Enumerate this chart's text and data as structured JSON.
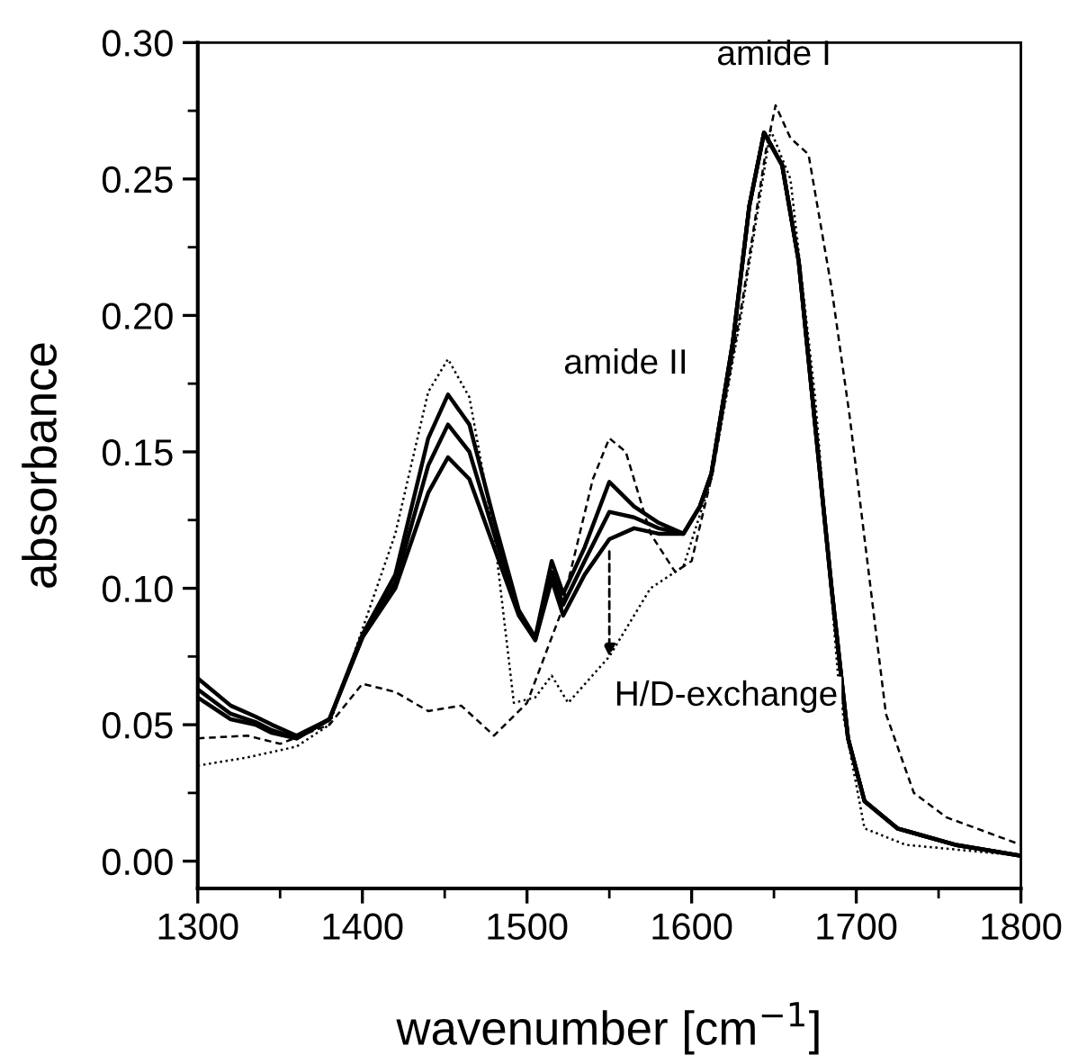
{
  "chart_data": {
    "type": "line",
    "xlabel": "wavenumber [cm$^{−1}$]",
    "ylabel": "absorbance",
    "xlim": [
      1300,
      1800
    ],
    "xticks": [
      1300,
      1400,
      1500,
      1600,
      1700,
      1800
    ],
    "ylim": [
      -0.01,
      0.3
    ],
    "yticks": [
      {
        "value": 0,
        "label": "0.00"
      },
      {
        "value": 0.05,
        "label": "0.05"
      },
      {
        "value": 0.1,
        "label": "0.10"
      },
      {
        "value": 0.15,
        "label": "0.15"
      },
      {
        "value": 0.2,
        "label": "0.20"
      },
      {
        "value": 0.25,
        "label": "0.25"
      },
      {
        "value": 0.3,
        "label": "0.30"
      }
    ],
    "grid": false,
    "legend": false,
    "marker": "none",
    "annotations": [
      "amide I",
      "amide II",
      {
        "text": "H/D-exchange",
        "x": 1550,
        "y": 0.075
      }
    ],
    "series": [
      {
        "color": "#000000",
        "line_style": "dotted",
        "x": [
          1300,
          1330,
          1360,
          1380,
          1400,
          1420,
          1440,
          1452,
          1465,
          1480,
          1492,
          1505,
          1515,
          1525,
          1550,
          1575,
          1595,
          1612,
          1630,
          1648,
          1660,
          1675,
          1690,
          1705,
          1730,
          1800
        ],
        "values": [
          0.035,
          0.038,
          0.042,
          0.05,
          0.085,
          0.12,
          0.172,
          0.184,
          0.17,
          0.12,
          0.058,
          0.06,
          0.068,
          0.058,
          0.075,
          0.1,
          0.108,
          0.14,
          0.2,
          0.268,
          0.25,
          0.17,
          0.06,
          0.012,
          0.006,
          0.002
        ]
      },
      {
        "color": "#000000",
        "line_style": "dashed",
        "x": [
          1300,
          1330,
          1350,
          1380,
          1400,
          1420,
          1440,
          1460,
          1480,
          1500,
          1520,
          1540,
          1550,
          1560,
          1575,
          1590,
          1600,
          1613,
          1631,
          1645,
          1651,
          1660,
          1671,
          1685,
          1696,
          1718,
          1735,
          1755,
          1800
        ],
        "values": [
          0.045,
          0.046,
          0.043,
          0.05,
          0.065,
          0.062,
          0.055,
          0.057,
          0.046,
          0.058,
          0.09,
          0.14,
          0.155,
          0.15,
          0.12,
          0.106,
          0.11,
          0.143,
          0.206,
          0.26,
          0.277,
          0.265,
          0.259,
          0.21,
          0.163,
          0.054,
          0.025,
          0.016,
          0.006
        ]
      },
      {
        "color": "#000000",
        "line_style": "solid",
        "x": [
          1300,
          1320,
          1335,
          1345,
          1360,
          1380,
          1400,
          1420,
          1440,
          1452,
          1465,
          1480,
          1495,
          1505,
          1515,
          1522,
          1535,
          1550,
          1565,
          1580,
          1595,
          1605,
          1612,
          1625,
          1635,
          1644,
          1655,
          1665,
          1675,
          1685,
          1695,
          1705,
          1725,
          1760,
          1800
        ],
        "values": [
          0.067,
          0.057,
          0.053,
          0.05,
          0.046,
          0.052,
          0.083,
          0.105,
          0.155,
          0.171,
          0.16,
          0.125,
          0.092,
          0.082,
          0.11,
          0.098,
          0.115,
          0.139,
          0.13,
          0.124,
          0.12,
          0.13,
          0.142,
          0.19,
          0.24,
          0.267,
          0.255,
          0.22,
          0.16,
          0.1,
          0.045,
          0.022,
          0.012,
          0.006,
          0.002
        ]
      },
      {
        "color": "#000000",
        "line_style": "solid",
        "x": [
          1300,
          1320,
          1335,
          1345,
          1360,
          1380,
          1400,
          1420,
          1440,
          1452,
          1465,
          1480,
          1495,
          1505,
          1515,
          1522,
          1535,
          1550,
          1565,
          1580,
          1595,
          1605,
          1612,
          1625,
          1635,
          1644,
          1655,
          1665,
          1675,
          1685,
          1695,
          1705,
          1725,
          1760,
          1800
        ],
        "values": [
          0.063,
          0.054,
          0.051,
          0.048,
          0.045,
          0.052,
          0.082,
          0.102,
          0.145,
          0.16,
          0.15,
          0.12,
          0.091,
          0.081,
          0.106,
          0.094,
          0.11,
          0.128,
          0.126,
          0.122,
          0.12,
          0.13,
          0.142,
          0.19,
          0.24,
          0.267,
          0.255,
          0.22,
          0.16,
          0.1,
          0.045,
          0.022,
          0.012,
          0.006,
          0.002
        ]
      },
      {
        "color": "#000000",
        "line_style": "solid",
        "x": [
          1300,
          1320,
          1335,
          1345,
          1360,
          1380,
          1400,
          1420,
          1440,
          1452,
          1465,
          1480,
          1495,
          1505,
          1515,
          1522,
          1535,
          1550,
          1565,
          1580,
          1595,
          1605,
          1612,
          1625,
          1635,
          1644,
          1655,
          1665,
          1675,
          1685,
          1695,
          1705,
          1725,
          1760,
          1800
        ],
        "values": [
          0.06,
          0.052,
          0.05,
          0.047,
          0.045,
          0.052,
          0.082,
          0.1,
          0.135,
          0.148,
          0.14,
          0.115,
          0.09,
          0.081,
          0.103,
          0.09,
          0.105,
          0.118,
          0.122,
          0.12,
          0.12,
          0.13,
          0.142,
          0.19,
          0.24,
          0.267,
          0.255,
          0.22,
          0.16,
          0.1,
          0.045,
          0.022,
          0.012,
          0.006,
          0.002
        ]
      }
    ]
  }
}
